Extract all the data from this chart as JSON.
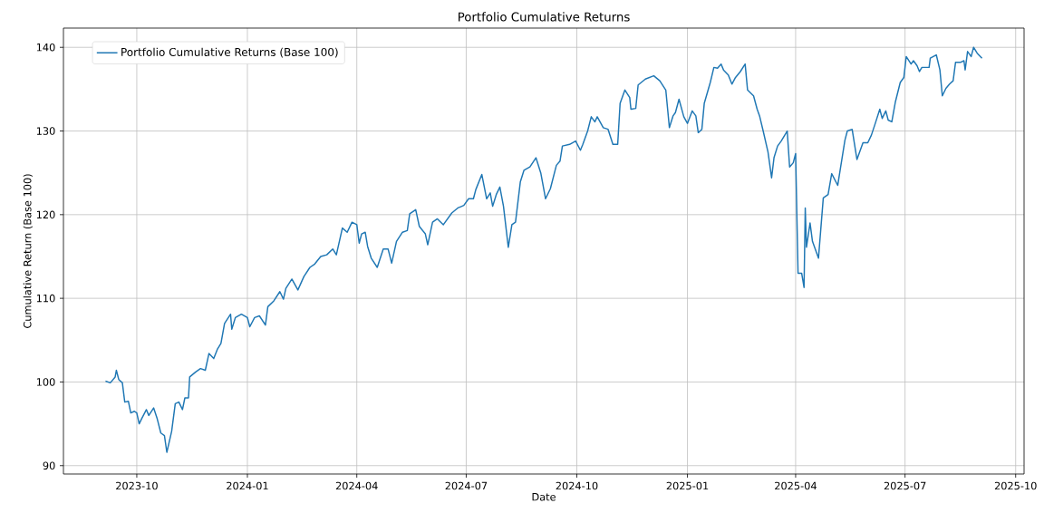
{
  "chart_data": {
    "type": "line",
    "title": "Portfolio Cumulative Returns",
    "xlabel": "Date",
    "ylabel": "Cumulative Return (Base 100)",
    "x": [
      "2023-09-05",
      "2023-09-09",
      "2023-09-13",
      "2023-09-14",
      "2023-09-16",
      "2023-09-19",
      "2023-09-21",
      "2023-09-24",
      "2023-09-26",
      "2023-09-29",
      "2023-10-01",
      "2023-10-03",
      "2023-10-05",
      "2023-10-09",
      "2023-10-11",
      "2023-10-15",
      "2023-10-18",
      "2023-10-21",
      "2023-10-24",
      "2023-10-26",
      "2023-10-30",
      "2023-11-02",
      "2023-11-05",
      "2023-11-08",
      "2023-11-10",
      "2023-11-13",
      "2023-11-14",
      "2023-11-19",
      "2023-11-23",
      "2023-11-27",
      "2023-11-30",
      "2023-12-04",
      "2023-12-07",
      "2023-12-10",
      "2023-12-13",
      "2023-12-18",
      "2023-12-19",
      "2023-12-22",
      "2023-12-27",
      "2024-01-01",
      "2024-01-03",
      "2024-01-07",
      "2024-01-11",
      "2024-01-16",
      "2024-01-18",
      "2024-01-23",
      "2024-01-28",
      "2024-01-31",
      "2024-02-02",
      "2024-02-07",
      "2024-02-12",
      "2024-02-17",
      "2024-02-22",
      "2024-02-26",
      "2024-03-02",
      "2024-03-07",
      "2024-03-12",
      "2024-03-15",
      "2024-03-20",
      "2024-03-24",
      "2024-03-28",
      "2024-04-01",
      "2024-04-03",
      "2024-04-05",
      "2024-04-08",
      "2024-04-10",
      "2024-04-13",
      "2024-04-18",
      "2024-04-23",
      "2024-04-27",
      "2024-04-30",
      "2024-05-04",
      "2024-05-09",
      "2024-05-13",
      "2024-05-15",
      "2024-05-20",
      "2024-05-23",
      "2024-05-28",
      "2024-05-30",
      "2024-06-03",
      "2024-06-07",
      "2024-06-12",
      "2024-06-19",
      "2024-06-24",
      "2024-06-29",
      "2024-07-03",
      "2024-07-07",
      "2024-07-09",
      "2024-07-14",
      "2024-07-18",
      "2024-07-21",
      "2024-07-23",
      "2024-07-26",
      "2024-07-29",
      "2024-08-01",
      "2024-08-05",
      "2024-08-08",
      "2024-08-11",
      "2024-08-15",
      "2024-08-18",
      "2024-08-23",
      "2024-08-28",
      "2024-09-01",
      "2024-09-05",
      "2024-09-09",
      "2024-09-14",
      "2024-09-17",
      "2024-09-19",
      "2024-09-25",
      "2024-09-30",
      "2024-10-04",
      "2024-10-06",
      "2024-10-10",
      "2024-10-13",
      "2024-10-16",
      "2024-10-18",
      "2024-10-23",
      "2024-10-27",
      "2024-10-31",
      "2024-11-04",
      "2024-11-06",
      "2024-11-10",
      "2024-11-14",
      "2024-11-15",
      "2024-11-19",
      "2024-11-21",
      "2024-11-27",
      "2024-12-04",
      "2024-12-09",
      "2024-12-14",
      "2024-12-17",
      "2024-12-20",
      "2024-12-22",
      "2024-12-25",
      "2024-12-29",
      "2025-01-01",
      "2025-01-05",
      "2025-01-08",
      "2025-01-10",
      "2025-01-13",
      "2025-01-15",
      "2025-01-20",
      "2025-01-23",
      "2025-01-26",
      "2025-01-29",
      "2025-01-31",
      "2025-02-04",
      "2025-02-07",
      "2025-02-10",
      "2025-02-14",
      "2025-02-18",
      "2025-02-20",
      "2025-02-25",
      "2025-02-28",
      "2025-03-02",
      "2025-03-05",
      "2025-03-09",
      "2025-03-12",
      "2025-03-14",
      "2025-03-17",
      "2025-03-20",
      "2025-03-25",
      "2025-03-27",
      "2025-03-30",
      "2025-04-01",
      "2025-04-03",
      "2025-04-06",
      "2025-04-08",
      "2025-04-09",
      "2025-04-10",
      "2025-04-13",
      "2025-04-15",
      "2025-04-20",
      "2025-04-24",
      "2025-04-28",
      "2025-05-01",
      "2025-05-06",
      "2025-05-08",
      "2025-05-12",
      "2025-05-14",
      "2025-05-18",
      "2025-05-22",
      "2025-05-27",
      "2025-05-31",
      "2025-06-03",
      "2025-06-06",
      "2025-06-10",
      "2025-06-12",
      "2025-06-15",
      "2025-06-17",
      "2025-06-20",
      "2025-06-23",
      "2025-06-27",
      "2025-06-30",
      "2025-07-02",
      "2025-07-06",
      "2025-07-08",
      "2025-07-11",
      "2025-07-13",
      "2025-07-15",
      "2025-07-18",
      "2025-07-21",
      "2025-07-22",
      "2025-07-27",
      "2025-07-30",
      "2025-08-01",
      "2025-08-04",
      "2025-08-07",
      "2025-08-10",
      "2025-08-12",
      "2025-08-16",
      "2025-08-19",
      "2025-08-20",
      "2025-08-22",
      "2025-08-25",
      "2025-08-27",
      "2025-08-30",
      "2025-09-03"
    ],
    "series": [
      {
        "name": "Portfolio Cumulative Returns (Base 100)",
        "color": "#1f77b4",
        "values": [
          100.1,
          99.9,
          100.6,
          101.4,
          100.3,
          99.9,
          97.6,
          97.7,
          96.3,
          96.5,
          96.3,
          95.0,
          95.6,
          96.7,
          96.0,
          96.9,
          95.6,
          93.9,
          93.6,
          91.6,
          94.1,
          97.4,
          97.6,
          96.7,
          98.1,
          98.1,
          100.6,
          101.2,
          101.6,
          101.4,
          103.4,
          102.8,
          103.9,
          104.6,
          107.0,
          108.1,
          106.3,
          107.7,
          108.1,
          107.7,
          106.6,
          107.7,
          107.9,
          106.8,
          109.0,
          109.7,
          110.8,
          109.9,
          111.2,
          112.3,
          111.0,
          112.6,
          113.7,
          114.1,
          115.0,
          115.2,
          115.9,
          115.2,
          118.4,
          117.9,
          119.1,
          118.8,
          116.6,
          117.7,
          117.9,
          116.2,
          114.8,
          113.7,
          115.9,
          115.9,
          114.2,
          116.8,
          117.9,
          118.1,
          120.1,
          120.6,
          118.6,
          117.7,
          116.4,
          119.1,
          119.5,
          118.8,
          120.2,
          120.8,
          121.1,
          121.9,
          121.9,
          123.0,
          124.8,
          121.9,
          122.6,
          121.0,
          122.4,
          123.3,
          121.0,
          116.1,
          118.8,
          119.1,
          123.9,
          125.3,
          125.7,
          126.8,
          125.0,
          121.9,
          123.1,
          125.9,
          126.4,
          128.2,
          128.4,
          128.8,
          127.7,
          128.4,
          130.0,
          131.7,
          131.1,
          131.7,
          130.4,
          130.2,
          128.4,
          128.4,
          133.3,
          134.9,
          134.0,
          132.6,
          132.7,
          135.5,
          136.2,
          136.6,
          136.0,
          134.9,
          130.4,
          131.8,
          132.2,
          133.8,
          131.7,
          130.9,
          132.4,
          131.8,
          129.8,
          130.2,
          133.3,
          135.8,
          137.6,
          137.5,
          138.0,
          137.3,
          136.7,
          135.6,
          136.4,
          137.1,
          138.0,
          134.9,
          134.2,
          132.6,
          131.8,
          130.0,
          127.5,
          124.4,
          126.8,
          128.2,
          128.8,
          130.0,
          125.7,
          126.2,
          127.3,
          113.0,
          113.0,
          111.3,
          120.8,
          116.1,
          119.0,
          116.8,
          114.8,
          122.0,
          122.4,
          124.9,
          123.5,
          125.3,
          128.9,
          130.0,
          130.2,
          126.6,
          128.6,
          128.6,
          129.5,
          130.8,
          132.6,
          131.5,
          132.4,
          131.3,
          131.1,
          133.5,
          135.8,
          136.4,
          138.9,
          138.0,
          138.4,
          137.8,
          137.1,
          137.6,
          137.6,
          137.6,
          138.7,
          139.1,
          137.3,
          134.2,
          135.1,
          135.6,
          136.0,
          138.2,
          138.2,
          138.4,
          137.3,
          139.5,
          138.9,
          140.0,
          139.3,
          138.7
        ]
      }
    ],
    "xlim": [
      "2023-08-01",
      "2025-10-08"
    ],
    "xticks": [
      {
        "value": "2023-10-01",
        "label": "2023-10"
      },
      {
        "value": "2024-01-01",
        "label": "2024-01"
      },
      {
        "value": "2024-04-01",
        "label": "2024-04"
      },
      {
        "value": "2024-07-01",
        "label": "2024-07"
      },
      {
        "value": "2024-10-01",
        "label": "2024-10"
      },
      {
        "value": "2025-01-01",
        "label": "2025-01"
      },
      {
        "value": "2025-04-01",
        "label": "2025-04"
      },
      {
        "value": "2025-07-01",
        "label": "2025-07"
      },
      {
        "value": "2025-10-01",
        "label": "2025-10"
      }
    ],
    "ylim": [
      89,
      142.3
    ],
    "yticks": [
      90,
      100,
      110,
      120,
      130,
      140
    ],
    "grid": true,
    "legend": "top left",
    "marker": "none",
    "line_style": "solid"
  }
}
